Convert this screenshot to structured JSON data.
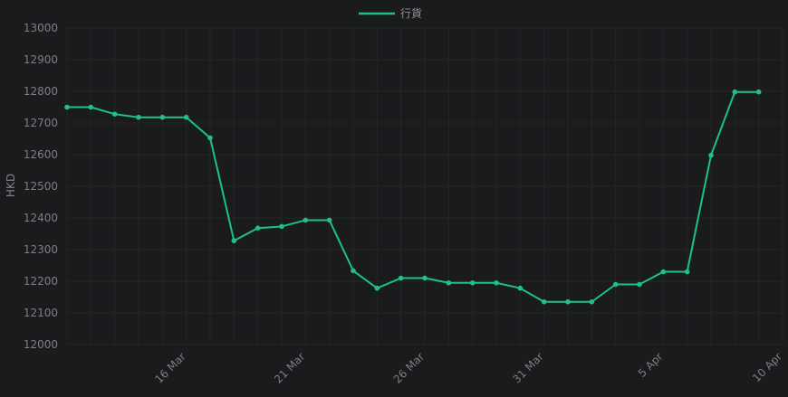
{
  "chart_data": {
    "type": "line",
    "title": "",
    "xlabel": "",
    "ylabel": "HKD",
    "ylim": [
      12000,
      13000
    ],
    "yticks": [
      12000,
      12100,
      12200,
      12300,
      12400,
      12500,
      12600,
      12700,
      12800,
      12900,
      13000
    ],
    "xlim": [
      "2023-03-11",
      "2023-04-10"
    ],
    "xtick_labels": [
      {
        "date": "2023-03-16",
        "label": "16 Mar"
      },
      {
        "date": "2023-03-21",
        "label": "21 Mar"
      },
      {
        "date": "2023-03-26",
        "label": "26 Mar"
      },
      {
        "date": "2023-03-31",
        "label": "31 Mar"
      },
      {
        "date": "2023-04-05",
        "label": "5 Apr"
      },
      {
        "date": "2023-04-10",
        "label": "10 Apr"
      }
    ],
    "grid": true,
    "legend_position": "top-center",
    "series": [
      {
        "name": "行貨",
        "color": "#1fc08a",
        "points": [
          {
            "x": "2023-03-11",
            "y": 12750
          },
          {
            "x": "2023-03-12",
            "y": 12750
          },
          {
            "x": "2023-03-13",
            "y": 12728
          },
          {
            "x": "2023-03-14",
            "y": 12718
          },
          {
            "x": "2023-03-15",
            "y": 12718
          },
          {
            "x": "2023-03-16",
            "y": 12718
          },
          {
            "x": "2023-03-17",
            "y": 12653
          },
          {
            "x": "2023-03-18",
            "y": 12328
          },
          {
            "x": "2023-03-19",
            "y": 12368
          },
          {
            "x": "2023-03-20",
            "y": 12373
          },
          {
            "x": "2023-03-21",
            "y": 12393
          },
          {
            "x": "2023-03-22",
            "y": 12393
          },
          {
            "x": "2023-03-23",
            "y": 12233
          },
          {
            "x": "2023-03-24",
            "y": 12178
          },
          {
            "x": "2023-03-25",
            "y": 12210
          },
          {
            "x": "2023-03-26",
            "y": 12210
          },
          {
            "x": "2023-03-27",
            "y": 12195
          },
          {
            "x": "2023-03-28",
            "y": 12195
          },
          {
            "x": "2023-03-29",
            "y": 12195
          },
          {
            "x": "2023-03-30",
            "y": 12178
          },
          {
            "x": "2023-03-31",
            "y": 12135
          },
          {
            "x": "2023-04-01",
            "y": 12135
          },
          {
            "x": "2023-04-02",
            "y": 12135
          },
          {
            "x": "2023-04-03",
            "y": 12190
          },
          {
            "x": "2023-04-04",
            "y": 12190
          },
          {
            "x": "2023-04-05",
            "y": 12230
          },
          {
            "x": "2023-04-06",
            "y": 12230
          },
          {
            "x": "2023-04-07",
            "y": 12598
          },
          {
            "x": "2023-04-08",
            "y": 12798
          },
          {
            "x": "2023-04-09",
            "y": 12798
          }
        ]
      }
    ]
  }
}
